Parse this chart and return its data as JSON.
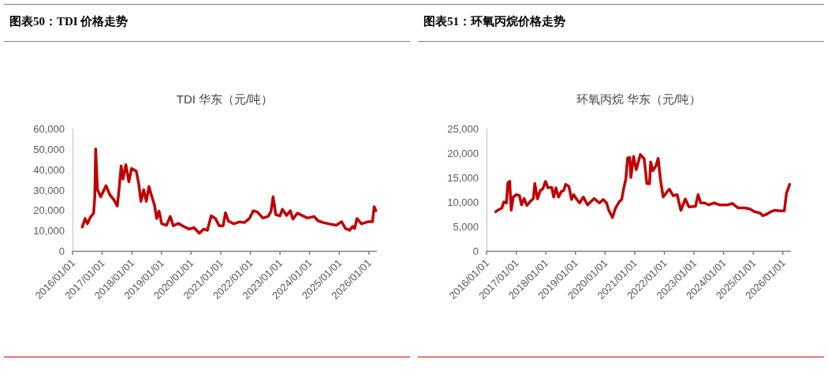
{
  "chart_data": [
    {
      "type": "line",
      "title": "图表50：TDI 价格走势",
      "subtitle": "TDI 华东（元/吨）",
      "x": [
        "2016-04-30",
        "2016-06-03",
        "2016-07-02",
        "2016-08-07",
        "2016-09-16",
        "2016-10-01",
        "2016-10-12",
        "2016-11-03",
        "2016-12-13",
        "2017-02-17",
        "2017-04-05",
        "2017-05-27",
        "2017-07-05",
        "2017-07-27",
        "2017-08-22",
        "2017-09-13",
        "2017-10-19",
        "2017-11-25",
        "2017-12-28",
        "2018-02-25",
        "2018-03-28",
        "2018-04-23",
        "2018-05-27",
        "2018-06-28",
        "2018-07-31",
        "2018-08-29",
        "2018-10-08",
        "2018-11-03",
        "2018-12-02",
        "2019-01-04",
        "2019-03-04",
        "2019-04-19",
        "2019-05-27",
        "2019-07-27",
        "2019-10-01",
        "2019-12-06",
        "2020-02-06",
        "2020-04-12",
        "2020-06-03",
        "2020-07-20",
        "2020-09-05",
        "2020-10-27",
        "2020-12-13",
        "2021-01-30",
        "2021-02-28",
        "2021-04-05",
        "2021-06-10",
        "2021-08-14",
        "2021-10-19",
        "2021-12-20",
        "2022-02-06",
        "2022-03-28",
        "2022-06-03",
        "2022-08-07",
        "2022-09-13",
        "2022-10-08",
        "2022-11-10",
        "2023-01-01",
        "2023-01-30",
        "2023-03-22",
        "2023-05-08",
        "2023-06-10",
        "2023-08-03",
        "2023-10-01",
        "2023-12-06",
        "2024-02-25",
        "2024-04-12",
        "2024-06-18",
        "2024-08-22",
        "2024-11-25",
        "2025-01-30",
        "2025-03-18",
        "2025-05-08",
        "2025-06-14",
        "2025-07-09",
        "2025-08-07",
        "2025-10-01",
        "2025-12-20",
        "2026-02-14",
        "2026-03-07",
        "2026-03-28"
      ],
      "series": [
        {
          "color": "#c00000",
          "values": [
            11700,
            15900,
            13300,
            16500,
            18400,
            26200,
            50000,
            30000,
            26500,
            32000,
            27500,
            24900,
            22000,
            30000,
            41700,
            35200,
            42300,
            33900,
            40400,
            39100,
            32600,
            24300,
            30000,
            24300,
            31600,
            27500,
            22300,
            15900,
            19500,
            13300,
            12600,
            16900,
            12300,
            13500,
            12000,
            10700,
            11400,
            8600,
            10700,
            10100,
            17200,
            15900,
            12300,
            12300,
            18700,
            14600,
            13300,
            14200,
            13900,
            15900,
            19700,
            19100,
            16100,
            16900,
            19500,
            26600,
            17800,
            17200,
            20400,
            17400,
            19700,
            15600,
            18500,
            17400,
            16100,
            16900,
            14800,
            13900,
            13300,
            12600,
            14300,
            11000,
            10100,
            12000,
            11000,
            15900,
            13300,
            14300,
            14300,
            21700,
            19700
          ]
        }
      ],
      "xlim": [
        "2016-01-01",
        "2026-04-10"
      ],
      "xticks": [
        {
          "value": "2016-01-01",
          "label": "2016/01/01"
        },
        {
          "value": "2017-01-01",
          "label": "2017/01/01"
        },
        {
          "value": "2018-01-01",
          "label": "2018/01/01"
        },
        {
          "value": "2019-01-01",
          "label": "2019/01/01"
        },
        {
          "value": "2020-01-01",
          "label": "2020/01/01"
        },
        {
          "value": "2021-01-01",
          "label": "2021/01/01"
        },
        {
          "value": "2022-01-01",
          "label": "2022/01/01"
        },
        {
          "value": "2023-01-01",
          "label": "2023/01/01"
        },
        {
          "value": "2024-01-01",
          "label": "2024/01/01"
        },
        {
          "value": "2025-01-01",
          "label": "2025/01/01"
        },
        {
          "value": "2026-01-01",
          "label": "2026/01/01"
        }
      ],
      "ylim": [
        0,
        60000
      ],
      "yticks": [
        0,
        {
          "value": 10000,
          "label": "10,000"
        },
        {
          "value": 20000,
          "label": "20,000"
        },
        {
          "value": 30000,
          "label": "30,000"
        },
        {
          "value": 40000,
          "label": "40,000"
        },
        {
          "value": 50000,
          "label": "50,000"
        },
        {
          "value": 60000,
          "label": "60,000"
        }
      ]
    },
    {
      "type": "line",
      "title": "图表51：环氧丙烷价格走势",
      "subtitle": "环氧丙烷 华东（元/吨）",
      "x": [
        "2016-04-23",
        "2016-05-27",
        "2016-07-09",
        "2016-07-31",
        "2016-09-02",
        "2016-09-20",
        "2016-10-12",
        "2016-10-31",
        "2016-11-25",
        "2017-01-01",
        "2017-02-10",
        "2017-03-07",
        "2017-04-08",
        "2017-05-12",
        "2017-06-28",
        "2017-07-31",
        "2017-08-18",
        "2017-09-20",
        "2017-10-23",
        "2017-11-25",
        "2017-12-28",
        "2018-01-27",
        "2018-03-14",
        "2018-04-08",
        "2018-05-05",
        "2018-06-07",
        "2018-07-09",
        "2018-08-07",
        "2018-09-02",
        "2018-10-12",
        "2018-11-14",
        "2018-12-09",
        "2019-01-19",
        "2019-02-21",
        "2019-04-08",
        "2019-05-30",
        "2019-08-18",
        "2019-10-23",
        "2019-12-09",
        "2020-01-19",
        "2020-02-14",
        "2020-04-01",
        "2020-05-05",
        "2020-06-21",
        "2020-07-23",
        "2020-08-22",
        "2020-09-13",
        "2020-10-05",
        "2020-10-31",
        "2020-11-14",
        "2020-12-17",
        "2021-01-19",
        "2021-03-11",
        "2021-04-27",
        "2021-05-30",
        "2021-07-02",
        "2021-07-16",
        "2021-08-11",
        "2021-09-20",
        "2021-10-16",
        "2021-11-17",
        "2021-12-17",
        "2022-01-30",
        "2022-03-04",
        "2022-04-19",
        "2022-06-07",
        "2022-07-23",
        "2022-08-25",
        "2022-09-16",
        "2022-10-31",
        "2023-01-19",
        "2023-02-21",
        "2023-03-25",
        "2023-05-15",
        "2023-07-02",
        "2023-09-05",
        "2023-11-10",
        "2024-02-14",
        "2024-04-19",
        "2024-06-25",
        "2024-09-13",
        "2024-11-17",
        "2025-01-19",
        "2025-03-28",
        "2025-04-27",
        "2025-06-18",
        "2025-08-03",
        "2025-09-20",
        "2025-11-25",
        "2026-01-19",
        "2026-02-14",
        "2026-03-04",
        "2026-03-25"
      ],
      "series": [
        {
          "color": "#c00000",
          "values": [
            8000,
            8400,
            8800,
            10000,
            9800,
            13900,
            14200,
            8300,
            11000,
            11500,
            11300,
            9400,
            10700,
            9300,
            10200,
            10700,
            13800,
            10600,
            12300,
            12700,
            14200,
            12900,
            13000,
            11000,
            12900,
            11000,
            12100,
            12300,
            13600,
            13200,
            10500,
            11500,
            10500,
            9800,
            11000,
            9400,
            10700,
            9800,
            10500,
            9800,
            8400,
            6800,
            8600,
            10000,
            10500,
            13100,
            14700,
            19000,
            19100,
            15000,
            19300,
            16600,
            19700,
            18800,
            13800,
            13700,
            18200,
            16400,
            17400,
            18900,
            14200,
            11000,
            12000,
            12600,
            11300,
            11500,
            8300,
            9700,
            10600,
            9000,
            9100,
            11500,
            9800,
            9800,
            9400,
            9800,
            9400,
            9400,
            9700,
            8800,
            8800,
            8600,
            8000,
            7700,
            7200,
            7500,
            8000,
            8300,
            8200,
            8200,
            11800,
            12600,
            13600
          ]
        }
      ],
      "xlim": [
        "2016-01-01",
        "2026-04-10"
      ],
      "xticks": [
        {
          "value": "2016-01-01",
          "label": "2016/01/01"
        },
        {
          "value": "2017-01-01",
          "label": "2017/01/01"
        },
        {
          "value": "2018-01-01",
          "label": "2018/01/01"
        },
        {
          "value": "2019-01-01",
          "label": "2019/01/01"
        },
        {
          "value": "2020-01-01",
          "label": "2020/01/01"
        },
        {
          "value": "2021-01-01",
          "label": "2021/01/01"
        },
        {
          "value": "2022-01-01",
          "label": "2022/01/01"
        },
        {
          "value": "2023-01-01",
          "label": "2023/01/01"
        },
        {
          "value": "2024-01-01",
          "label": "2024/01/01"
        },
        {
          "value": "2025-01-01",
          "label": "2025/01/01"
        },
        {
          "value": "2026-01-01",
          "label": "2026/01/01"
        }
      ],
      "ylim": [
        0,
        25000
      ],
      "yticks": [
        0,
        {
          "value": 5000,
          "label": "5,000"
        },
        {
          "value": 10000,
          "label": "10,000"
        },
        {
          "value": 15000,
          "label": "15,000"
        },
        {
          "value": 20000,
          "label": "20,000"
        },
        {
          "value": 25000,
          "label": "25,000"
        }
      ]
    }
  ]
}
